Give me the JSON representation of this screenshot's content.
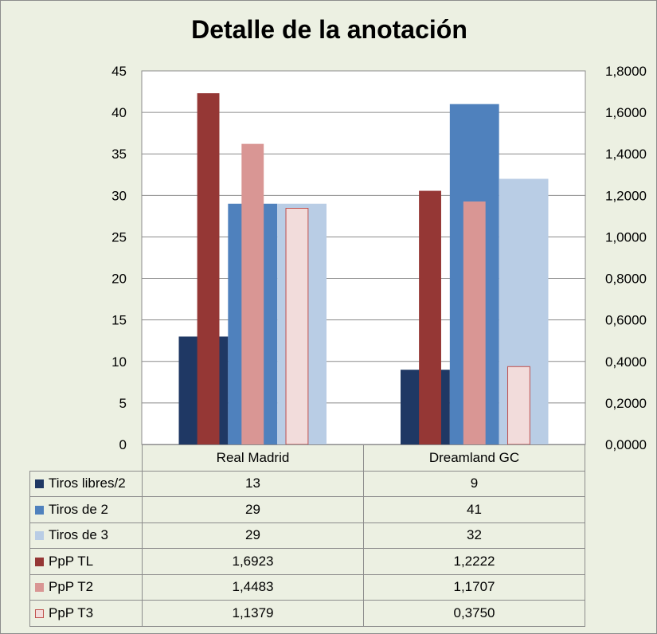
{
  "chart_data": {
    "type": "bar",
    "title": "Detalle de la anotación",
    "categories": [
      "Real Madrid",
      "Dreamland GC"
    ],
    "y_left": {
      "ylim": [
        0,
        45
      ],
      "ticks": [
        "0",
        "5",
        "10",
        "15",
        "20",
        "25",
        "30",
        "35",
        "40",
        "45"
      ]
    },
    "y_right": {
      "ylim": [
        0,
        1.8
      ],
      "ticks": [
        "0,0000",
        "0,2000",
        "0,4000",
        "0,6000",
        "0,8000",
        "1,0000",
        "1,2000",
        "1,4000",
        "1,6000",
        "1,8000"
      ]
    },
    "grid": true,
    "legend": "data-table",
    "series": [
      {
        "name": "Tiros libres/2",
        "axis": "left",
        "color": "#1f3864",
        "values": [
          13,
          9
        ],
        "labels": [
          "13",
          "9"
        ]
      },
      {
        "name": "Tiros de 2",
        "axis": "left",
        "color": "#4f81bd",
        "values": [
          29,
          41
        ],
        "labels": [
          "29",
          "41"
        ]
      },
      {
        "name": "Tiros de 3",
        "axis": "left",
        "color": "#b9cde5",
        "values": [
          29,
          32
        ],
        "labels": [
          "29",
          "32"
        ]
      },
      {
        "name": "PpP TL",
        "axis": "right",
        "color": "#953735",
        "values": [
          1.6923,
          1.2222
        ],
        "labels": [
          "1,6923",
          "1,2222"
        ]
      },
      {
        "name": "PpP T2",
        "axis": "right",
        "color": "#d99694",
        "values": [
          1.4483,
          1.1707
        ],
        "labels": [
          "1,4483",
          "1,1707"
        ]
      },
      {
        "name": "PpP T3",
        "axis": "right",
        "color": "#f2dcdb",
        "values": [
          1.1379,
          0.375
        ],
        "labels": [
          "1,1379",
          "0,3750"
        ]
      }
    ]
  }
}
